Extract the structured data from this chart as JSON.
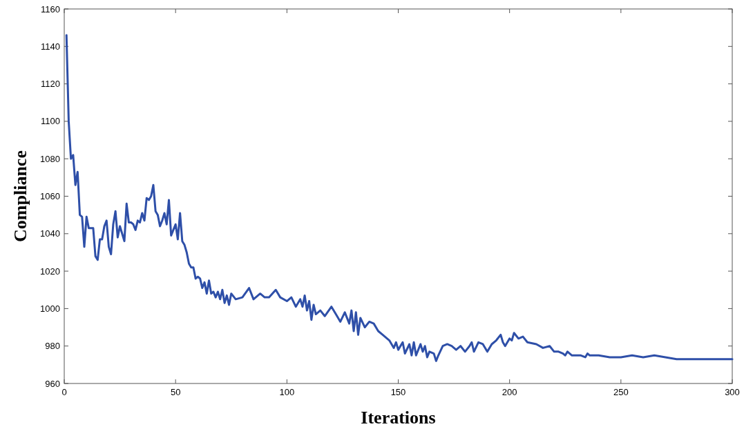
{
  "chart_data": {
    "type": "line",
    "xlabel": "Iterations",
    "ylabel": "Compliance",
    "xlim": [
      0,
      300
    ],
    "xticks": [
      0,
      50,
      100,
      150,
      200,
      250,
      300
    ],
    "ylim": [
      960,
      1160
    ],
    "yticks": [
      960,
      980,
      1000,
      1020,
      1040,
      1060,
      1080,
      1100,
      1120,
      1140,
      1160
    ],
    "grid": false,
    "series": [
      {
        "color": "#2e4fa8",
        "x": [
          1,
          2,
          3,
          4,
          5,
          6,
          7,
          8,
          9,
          10,
          11,
          12,
          13,
          14,
          15,
          16,
          17,
          18,
          19,
          20,
          21,
          22,
          23,
          24,
          25,
          26,
          27,
          28,
          29,
          30,
          31,
          32,
          33,
          34,
          35,
          36,
          37,
          38,
          39,
          40,
          41,
          42,
          43,
          44,
          45,
          46,
          47,
          48,
          49,
          50,
          51,
          52,
          53,
          54,
          55,
          56,
          57,
          58,
          59,
          60,
          61,
          62,
          63,
          64,
          65,
          66,
          67,
          68,
          69,
          70,
          71,
          72,
          73,
          74,
          75,
          77,
          80,
          83,
          85,
          88,
          90,
          92,
          95,
          97,
          100,
          102,
          104,
          106,
          107,
          108,
          109,
          110,
          111,
          112,
          113,
          115,
          117,
          120,
          122,
          124,
          126,
          128,
          129,
          130,
          131,
          132,
          133,
          135,
          137,
          139,
          141,
          143,
          146,
          148,
          149,
          150,
          152,
          153,
          155,
          156,
          157,
          158,
          160,
          161,
          162,
          163,
          164,
          166,
          167,
          168,
          170,
          172,
          174,
          176,
          178,
          180,
          182,
          183,
          184,
          186,
          188,
          190,
          192,
          194,
          196,
          197,
          198,
          200,
          201,
          202,
          204,
          206,
          208,
          212,
          215,
          218,
          220,
          222,
          224,
          225,
          226,
          228,
          232,
          234,
          235,
          236,
          240,
          245,
          250,
          255,
          260,
          265,
          270,
          275,
          280,
          285,
          290,
          295,
          300
        ],
        "values": [
          1146,
          1100,
          1080,
          1082,
          1066,
          1073,
          1050,
          1049,
          1033,
          1049,
          1043,
          1043,
          1043,
          1028,
          1026,
          1037,
          1037,
          1044,
          1047,
          1033,
          1029,
          1045,
          1052,
          1038,
          1044,
          1040,
          1036,
          1056,
          1046,
          1046,
          1045,
          1042,
          1047,
          1046,
          1051,
          1047,
          1059,
          1058,
          1060,
          1066,
          1052,
          1050,
          1044,
          1047,
          1051,
          1045,
          1058,
          1039,
          1042,
          1045,
          1037,
          1051,
          1036,
          1034,
          1030,
          1024,
          1022,
          1022,
          1016,
          1017,
          1016,
          1011,
          1014,
          1008,
          1015,
          1008,
          1009,
          1006,
          1009,
          1005,
          1010,
          1003,
          1007,
          1002,
          1008,
          1005,
          1006,
          1011,
          1005,
          1008,
          1006,
          1006,
          1010,
          1006,
          1004,
          1006,
          1001,
          1005,
          1001,
          1007,
          999,
          1004,
          994,
          1002,
          997,
          999,
          996,
          1001,
          997,
          993,
          998,
          992,
          999,
          988,
          998,
          986,
          995,
          990,
          993,
          992,
          988,
          986,
          983,
          979,
          982,
          978,
          982,
          976,
          981,
          975,
          982,
          975,
          981,
          977,
          980,
          974,
          977,
          976,
          972,
          975,
          980,
          981,
          980,
          978,
          980,
          977,
          980,
          982,
          977,
          982,
          981,
          977,
          981,
          983,
          986,
          982,
          980,
          984,
          983,
          987,
          984,
          985,
          982,
          981,
          979,
          980,
          977,
          977,
          976,
          975,
          977,
          975,
          975,
          974,
          976,
          975,
          975,
          974,
          974,
          975,
          974,
          975,
          974,
          973,
          973,
          973,
          973,
          973,
          973
        ]
      }
    ]
  }
}
